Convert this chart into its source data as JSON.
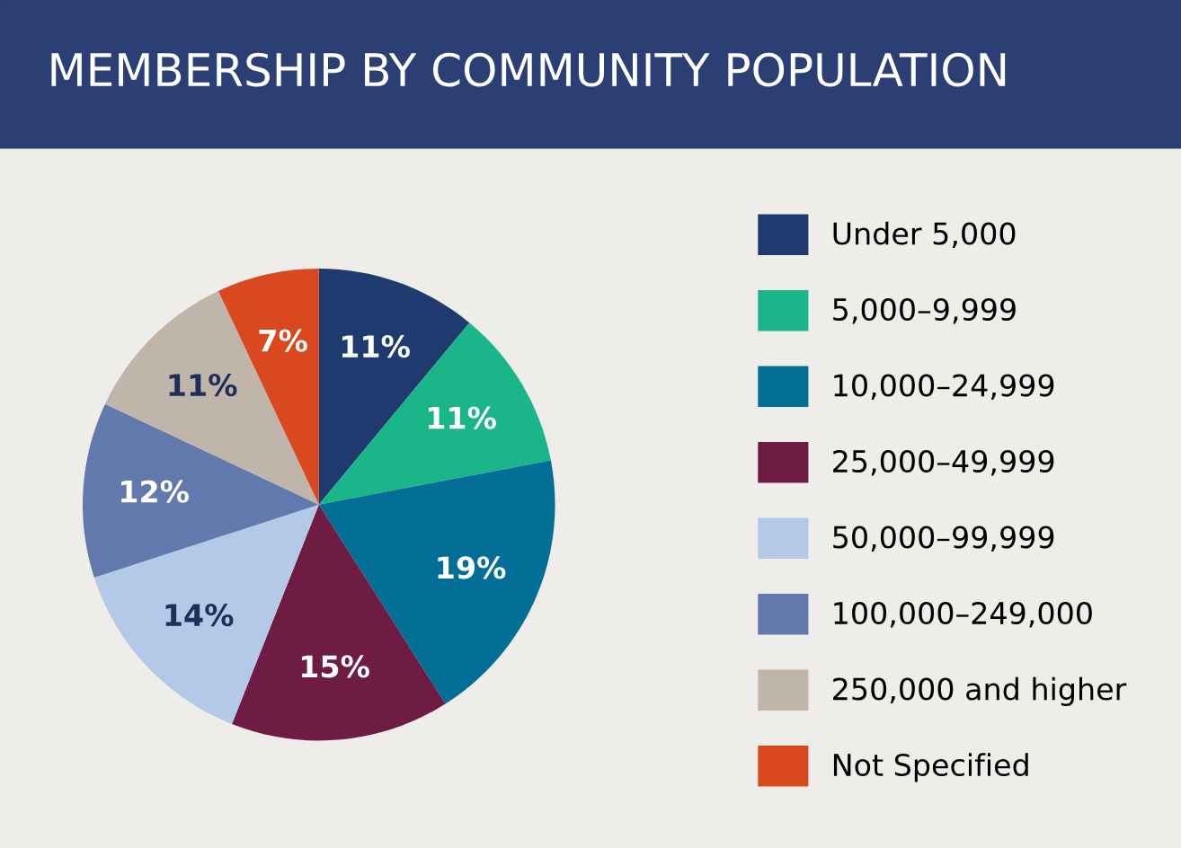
{
  "chart_data": {
    "type": "pie",
    "title": "MEMBERSHIP BY COMMUNITY POPULATION",
    "categories": [
      "Under 5,000",
      "5,000–9,999",
      "10,000–24,999",
      "25,000–49,999",
      "50,000–99,999",
      "100,000–249,000",
      "250,000 and higher",
      "Not Specified"
    ],
    "values": [
      11,
      11,
      19,
      15,
      14,
      12,
      11,
      7
    ],
    "colors": [
      "#1f3a6e",
      "#1bb58a",
      "#046f96",
      "#6f1c45",
      "#b4c9e8",
      "#6279ad",
      "#c0b5aa",
      "#d9481e"
    ],
    "value_labels": [
      "11%",
      "11%",
      "19%",
      "15%",
      "14%",
      "12%",
      "11%",
      "7%"
    ],
    "legend": "right"
  }
}
